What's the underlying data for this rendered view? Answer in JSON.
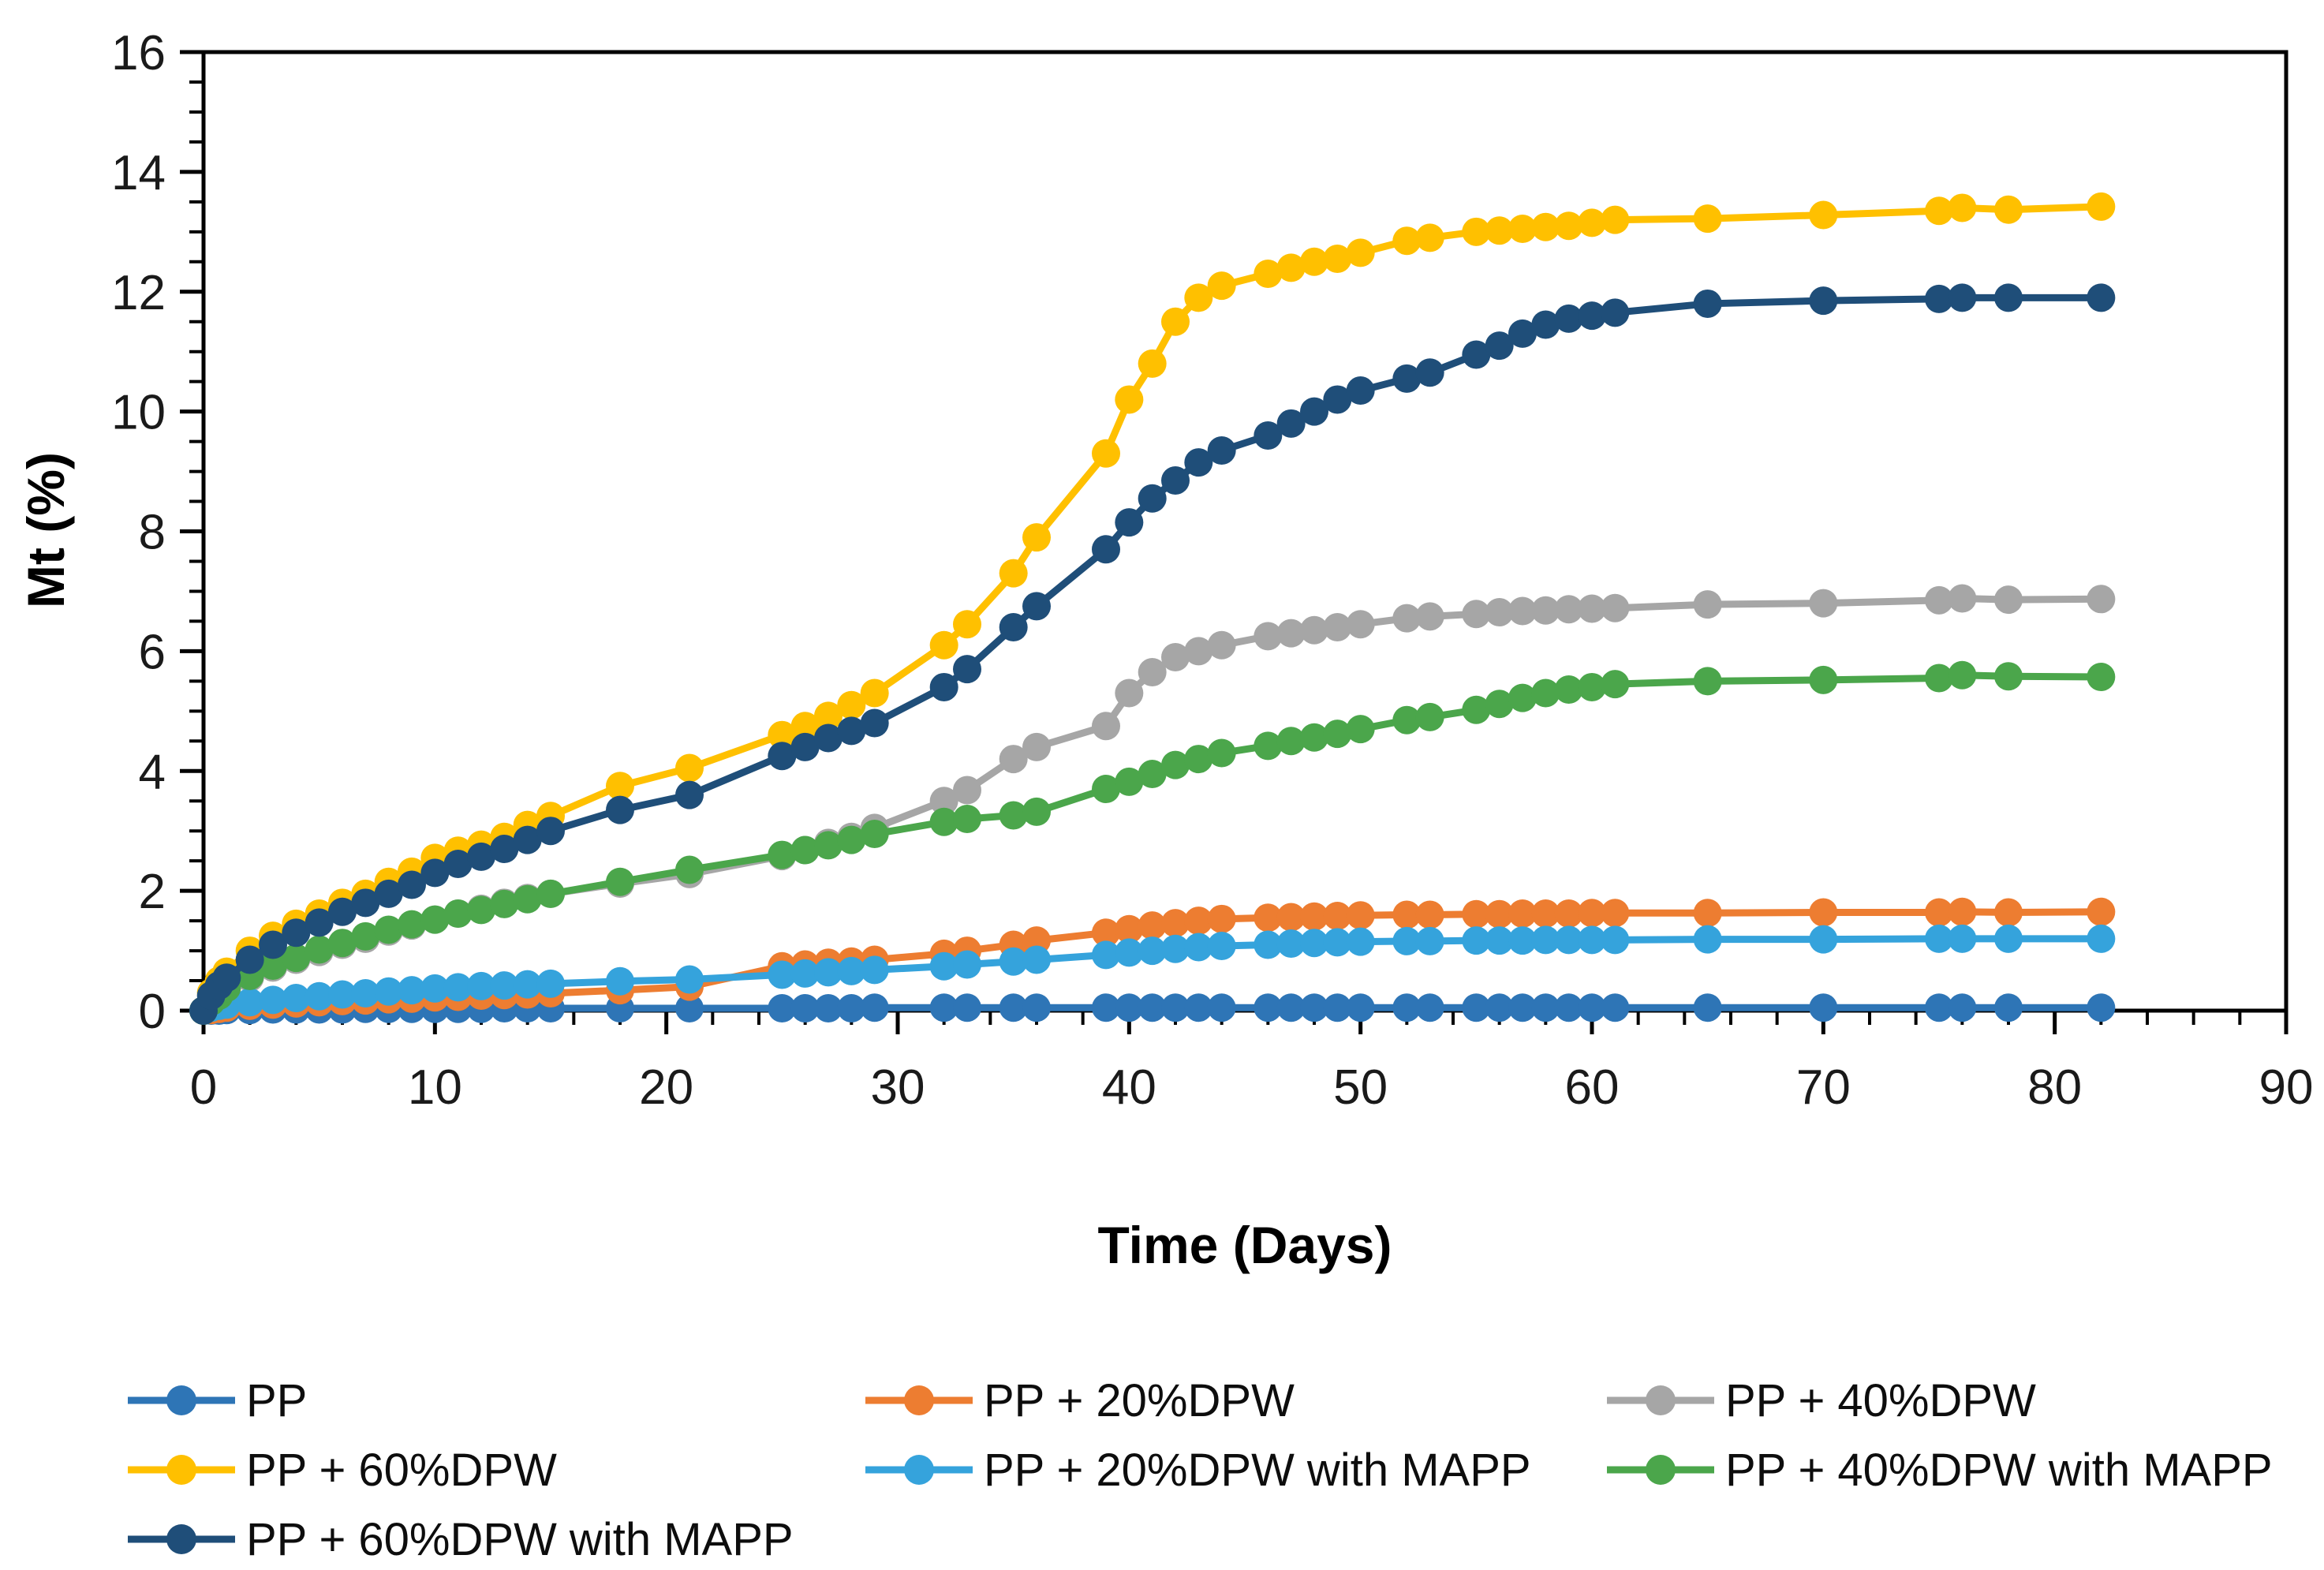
{
  "chart_data": {
    "type": "line",
    "title": "",
    "xlabel": "Time (Days)",
    "ylabel": "Mt (%)",
    "grid": false,
    "background_color": "#FFFFFF",
    "axis_color": "#000000",
    "legend_position": "bottom, 3 columns, 3 rows",
    "x_axis": {
      "min": 0,
      "max": 90,
      "major_tick": 10,
      "minor_tick": 2,
      "tick_labels": [
        "0",
        "10",
        "20",
        "30",
        "40",
        "50",
        "60",
        "70",
        "80",
        "90"
      ]
    },
    "y_axis": {
      "min": 0,
      "max": 16,
      "major_tick": 2,
      "minor_tick": 0.5,
      "tick_labels": [
        "0",
        "2",
        "4",
        "6",
        "8",
        "10",
        "12",
        "14",
        "16"
      ]
    },
    "x": [
      0,
      0.33,
      0.67,
      1,
      2,
      3,
      4,
      5,
      6,
      7,
      8,
      9,
      10,
      11,
      12,
      13,
      14,
      15,
      18,
      21,
      25,
      26,
      27,
      28,
      29,
      32,
      33,
      35,
      36,
      39,
      40,
      41,
      42,
      43,
      44,
      46,
      47,
      48,
      49,
      50,
      52,
      53,
      55,
      56,
      57,
      58,
      59,
      60,
      61,
      65,
      70,
      75,
      76,
      78,
      82
    ],
    "series": [
      {
        "name": "PP",
        "color": "#2E75B6",
        "legend_row": 0,
        "legend_col": 0,
        "values": [
          0,
          0,
          0,
          0.01,
          0.01,
          0.02,
          0.02,
          0.02,
          0.02,
          0.03,
          0.03,
          0.03,
          0.03,
          0.03,
          0.03,
          0.04,
          0.04,
          0.04,
          0.04,
          0.04,
          0.04,
          0.04,
          0.04,
          0.04,
          0.05,
          0.05,
          0.05,
          0.05,
          0.05,
          0.05,
          0.05,
          0.05,
          0.05,
          0.05,
          0.05,
          0.05,
          0.05,
          0.05,
          0.05,
          0.05,
          0.05,
          0.05,
          0.05,
          0.05,
          0.05,
          0.05,
          0.05,
          0.05,
          0.05,
          0.05,
          0.05,
          0.05,
          0.05,
          0.05,
          0.05
        ]
      },
      {
        "name": "PP + 20%DPW",
        "color": "#ED7D31",
        "legend_row": 0,
        "legend_col": 1,
        "values": [
          0,
          0.01,
          0.03,
          0.05,
          0.08,
          0.1,
          0.12,
          0.14,
          0.16,
          0.17,
          0.19,
          0.2,
          0.22,
          0.23,
          0.25,
          0.26,
          0.27,
          0.29,
          0.34,
          0.4,
          0.74,
          0.77,
          0.8,
          0.82,
          0.85,
          0.95,
          1.0,
          1.1,
          1.17,
          1.3,
          1.36,
          1.42,
          1.46,
          1.5,
          1.53,
          1.55,
          1.56,
          1.57,
          1.58,
          1.59,
          1.6,
          1.6,
          1.61,
          1.61,
          1.62,
          1.62,
          1.62,
          1.63,
          1.63,
          1.63,
          1.64,
          1.64,
          1.65,
          1.64,
          1.65
        ]
      },
      {
        "name": "PP + 40%DPW",
        "color": "#A6A6A6",
        "legend_row": 0,
        "legend_col": 2,
        "values": [
          0,
          0.12,
          0.22,
          0.35,
          0.55,
          0.72,
          0.85,
          0.98,
          1.1,
          1.2,
          1.32,
          1.42,
          1.52,
          1.62,
          1.7,
          1.8,
          1.88,
          1.95,
          2.12,
          2.28,
          2.58,
          2.68,
          2.8,
          2.9,
          3.05,
          3.5,
          3.68,
          4.2,
          4.4,
          4.75,
          5.3,
          5.65,
          5.9,
          6.0,
          6.1,
          6.25,
          6.3,
          6.35,
          6.4,
          6.45,
          6.55,
          6.58,
          6.62,
          6.65,
          6.67,
          6.68,
          6.7,
          6.71,
          6.72,
          6.78,
          6.8,
          6.85,
          6.88,
          6.86,
          6.87
        ]
      },
      {
        "name": "PP + 60%DPW",
        "color": "#FFC000",
        "legend_row": 1,
        "legend_col": 0,
        "values": [
          0,
          0.3,
          0.5,
          0.65,
          1.0,
          1.25,
          1.45,
          1.62,
          1.8,
          1.95,
          2.15,
          2.32,
          2.55,
          2.67,
          2.77,
          2.9,
          3.1,
          3.25,
          3.75,
          4.05,
          4.6,
          4.75,
          4.92,
          5.1,
          5.3,
          6.1,
          6.45,
          7.3,
          7.9,
          9.3,
          10.2,
          10.8,
          11.5,
          11.9,
          12.1,
          12.3,
          12.4,
          12.5,
          12.55,
          12.65,
          12.85,
          12.9,
          13.0,
          13.02,
          13.05,
          13.08,
          13.1,
          13.15,
          13.2,
          13.22,
          13.28,
          13.35,
          13.4,
          13.37,
          13.42
        ]
      },
      {
        "name": "PP + 20%DPW with MAPP",
        "color": "#35A3DC",
        "legend_row": 1,
        "legend_col": 1,
        "values": [
          0,
          0.05,
          0.08,
          0.1,
          0.14,
          0.18,
          0.21,
          0.24,
          0.27,
          0.29,
          0.32,
          0.34,
          0.37,
          0.39,
          0.41,
          0.42,
          0.44,
          0.45,
          0.49,
          0.52,
          0.6,
          0.62,
          0.64,
          0.66,
          0.68,
          0.74,
          0.77,
          0.82,
          0.85,
          0.93,
          0.97,
          1.0,
          1.03,
          1.06,
          1.08,
          1.1,
          1.12,
          1.13,
          1.14,
          1.15,
          1.16,
          1.16,
          1.17,
          1.17,
          1.17,
          1.18,
          1.18,
          1.18,
          1.18,
          1.19,
          1.19,
          1.2,
          1.2,
          1.2,
          1.2
        ]
      },
      {
        "name": "PP + 40%DPW with MAPP",
        "color": "#4BA64B",
        "legend_row": 1,
        "legend_col": 2,
        "values": [
          0,
          0.15,
          0.25,
          0.38,
          0.58,
          0.75,
          0.88,
          1.02,
          1.13,
          1.24,
          1.35,
          1.44,
          1.52,
          1.62,
          1.68,
          1.78,
          1.86,
          1.95,
          2.15,
          2.35,
          2.6,
          2.68,
          2.76,
          2.85,
          2.95,
          3.15,
          3.2,
          3.26,
          3.32,
          3.7,
          3.82,
          3.95,
          4.1,
          4.2,
          4.3,
          4.42,
          4.5,
          4.56,
          4.62,
          4.7,
          4.85,
          4.9,
          5.02,
          5.12,
          5.22,
          5.3,
          5.36,
          5.4,
          5.45,
          5.5,
          5.52,
          5.55,
          5.6,
          5.58,
          5.57
        ]
      },
      {
        "name": "PP + 60%DPW with MAPP",
        "color": "#1F4E79",
        "legend_row": 2,
        "legend_col": 0,
        "values": [
          0,
          0.25,
          0.42,
          0.55,
          0.85,
          1.1,
          1.3,
          1.47,
          1.65,
          1.8,
          1.95,
          2.1,
          2.3,
          2.45,
          2.57,
          2.7,
          2.85,
          3.0,
          3.35,
          3.6,
          4.25,
          4.4,
          4.55,
          4.67,
          4.8,
          5.4,
          5.7,
          6.4,
          6.75,
          7.7,
          8.15,
          8.55,
          8.85,
          9.15,
          9.35,
          9.6,
          9.8,
          10.0,
          10.2,
          10.35,
          10.55,
          10.65,
          10.95,
          11.1,
          11.3,
          11.45,
          11.55,
          11.6,
          11.65,
          11.8,
          11.85,
          11.88,
          11.9,
          11.9,
          11.9
        ]
      }
    ]
  }
}
